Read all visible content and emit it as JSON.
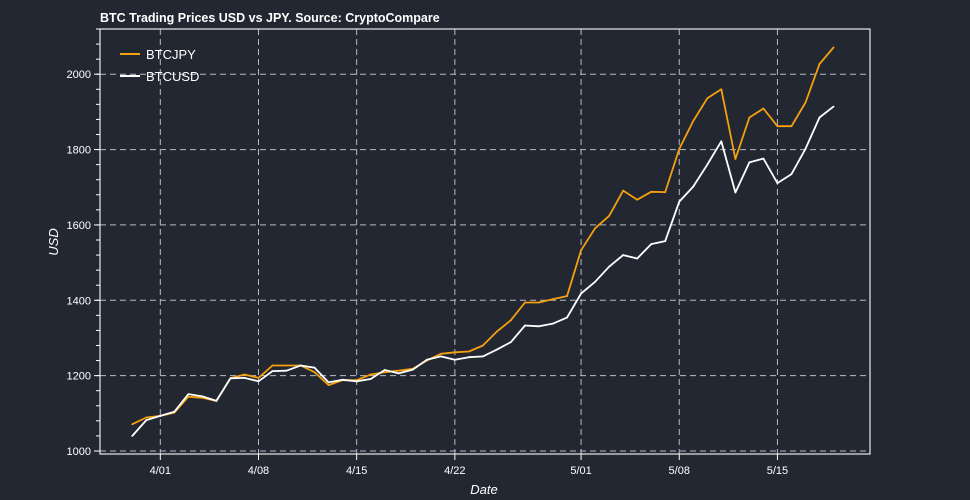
{
  "chart_data": {
    "type": "line",
    "title": "BTC Trading Prices USD vs JPY. Source: CryptoCompare",
    "xlabel": "Date",
    "ylabel": "USD",
    "ylim": [
      992,
      2120
    ],
    "yticks": [
      1000,
      1200,
      1400,
      1600,
      1800,
      2000
    ],
    "yminor_step": 40,
    "xticks": [
      {
        "date": "04-01",
        "label": "4/01"
      },
      {
        "date": "04-08",
        "label": "4/08"
      },
      {
        "date": "04-15",
        "label": "4/15"
      },
      {
        "date": "04-22",
        "label": "4/22"
      },
      {
        "date": "05-01",
        "label": "5/01"
      },
      {
        "date": "05-08",
        "label": "5/08"
      },
      {
        "date": "05-15",
        "label": "5/15"
      }
    ],
    "grid": true,
    "legend_position": "top-left",
    "start_date": "03-30",
    "series": [
      {
        "name": "BTCJPY",
        "color": "#f5a00f",
        "values": [
          1071,
          1089,
          1093,
          1102,
          1144,
          1141,
          1133,
          1193,
          1203,
          1194,
          1227,
          1227,
          1227,
          1209,
          1175,
          1188,
          1188,
          1203,
          1209,
          1213,
          1218,
          1240,
          1258,
          1262,
          1264,
          1280,
          1317,
          1347,
          1394,
          1394,
          1403,
          1411,
          1533,
          1591,
          1624,
          1691,
          1667,
          1688,
          1687,
          1802,
          1876,
          1936,
          1960,
          1775,
          1885,
          1909,
          1862,
          1862,
          1925,
          2027,
          2071
        ]
      },
      {
        "name": "BTCUSD",
        "color": "#ffffff",
        "values": [
          1040,
          1082,
          1093,
          1104,
          1151,
          1145,
          1133,
          1193,
          1194,
          1185,
          1212,
          1213,
          1227,
          1221,
          1182,
          1189,
          1185,
          1191,
          1215,
          1206,
          1216,
          1242,
          1251,
          1242,
          1249,
          1251,
          1269,
          1289,
          1333,
          1331,
          1338,
          1354,
          1418,
          1449,
          1489,
          1520,
          1511,
          1549,
          1557,
          1662,
          1702,
          1760,
          1822,
          1686,
          1766,
          1776,
          1711,
          1735,
          1802,
          1885,
          1914
        ]
      }
    ]
  }
}
